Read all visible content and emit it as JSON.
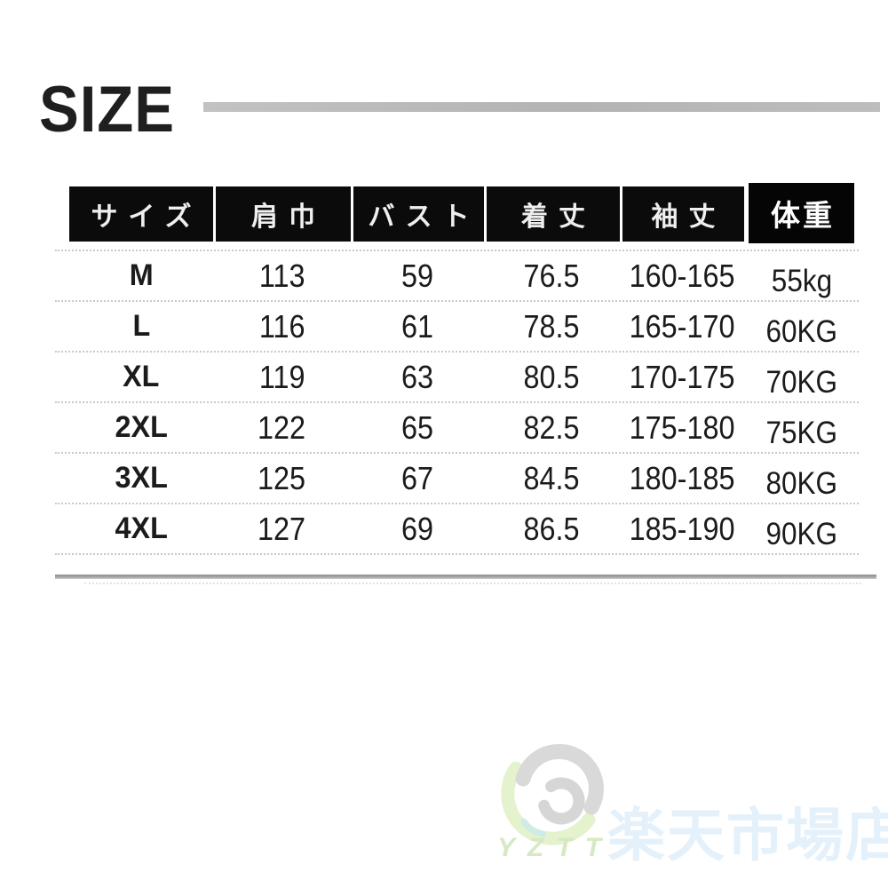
{
  "title": {
    "text": "SIZE"
  },
  "chart_data": {
    "type": "table",
    "title": "SIZE",
    "columns": [
      "サイズ",
      "肩巾",
      "バスト",
      "着丈",
      "袖丈",
      "体重"
    ],
    "rows": [
      [
        "M",
        "113",
        "59",
        "76.5",
        "160-165",
        "55kg"
      ],
      [
        "L",
        "116",
        "61",
        "78.5",
        "165-170",
        "60KG"
      ],
      [
        "XL",
        "119",
        "63",
        "80.5",
        "170-175",
        "70KG"
      ],
      [
        "2XL",
        "122",
        "65",
        "82.5",
        "175-180",
        "75KG"
      ],
      [
        "3XL",
        "125",
        "67",
        "84.5",
        "180-185",
        "80KG"
      ],
      [
        "4XL",
        "127",
        "69",
        "86.5",
        "185-190",
        "90KG"
      ]
    ]
  },
  "watermark": {
    "brand": "YZTT",
    "shop": "楽天市場店"
  },
  "colors": {
    "header_bg": "#0b0b0b",
    "header_text": "#ffffff",
    "body_text": "#1b1b1b",
    "rule_gray": "#b5b5b5",
    "dotted_gray": "#c9c9c9",
    "wm_gray": "#d9d9d9",
    "wm_green": "#e4f2ce",
    "wm_teal": "#cdebe7",
    "wm_brand_green": "#d6e9c3",
    "wm_shop_blue": "#e4f1fb"
  }
}
